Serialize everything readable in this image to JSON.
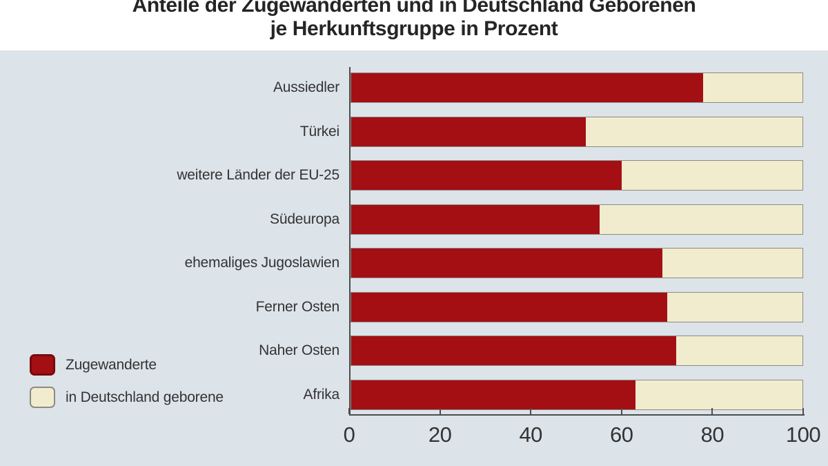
{
  "title": {
    "line1": "Anteile der Zugewanderten und in Deutschland Geborenen",
    "line2": "je Herkunftsgruppe in Prozent"
  },
  "legend": [
    {
      "label": "Zugewanderte",
      "color": "#a40f14",
      "border": "#780a0d"
    },
    {
      "label": "in Deutschland geborene",
      "color": "#f2ecce",
      "border": "#8b8b83"
    }
  ],
  "colors": {
    "panel_background": "#dce3e9",
    "page_background": "#ffffff",
    "axis": "#4d4d4d",
    "text": "#333333",
    "bar_border": "#8b8b83"
  },
  "chart_data": {
    "type": "bar",
    "orientation": "horizontal",
    "stacked": true,
    "title": "Anteile der Zugewanderten und in Deutschland Geborenen je Herkunftsgruppe in Prozent",
    "categories": [
      "Aussiedler",
      "Türkei",
      "weitere Länder der EU-25",
      "Südeuropa",
      "ehemaliges Jugoslawien",
      "Ferner Osten",
      "Naher Osten",
      "Afrika"
    ],
    "series": [
      {
        "name": "Zugewanderte",
        "color": "#a40f14",
        "values": [
          78,
          52,
          60,
          55,
          69,
          70,
          72,
          63
        ]
      },
      {
        "name": "in Deutschland geborene",
        "color": "#f2ecce",
        "values": [
          22,
          48,
          40,
          45,
          31,
          30,
          28,
          37
        ]
      }
    ],
    "xlim": [
      0,
      100
    ],
    "x_ticks": [
      0,
      20,
      40,
      60,
      80,
      100
    ],
    "xlabel": "",
    "ylabel": "",
    "grid": false,
    "legend_position": "bottom-left",
    "unit": "Prozent"
  }
}
